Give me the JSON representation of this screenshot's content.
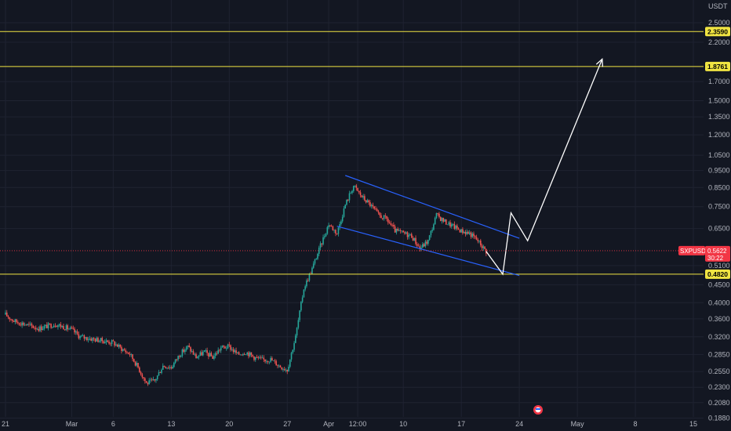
{
  "chart_data": {
    "type": "candlestick",
    "currency": "USDT",
    "y_scale": "log",
    "ylim": [
      0.18,
      2.9
    ],
    "xlim": [
      "2023-02-21",
      "2023-05-15"
    ],
    "grid": true,
    "y_ticks": [
      {
        "value": 2.5,
        "label": "2.5000"
      },
      {
        "value": 2.2,
        "label": "2.2000"
      },
      {
        "value": 1.7,
        "label": "1.7000"
      },
      {
        "value": 1.5,
        "label": "1.5000"
      },
      {
        "value": 1.35,
        "label": "1.3500"
      },
      {
        "value": 1.2,
        "label": "1.2000"
      },
      {
        "value": 1.05,
        "label": "1.0500"
      },
      {
        "value": 0.95,
        "label": "0.9500"
      },
      {
        "value": 0.85,
        "label": "0.8500"
      },
      {
        "value": 0.75,
        "label": "0.7500"
      },
      {
        "value": 0.65,
        "label": "0.6500"
      },
      {
        "value": 0.51,
        "label": "0.5100"
      },
      {
        "value": 0.45,
        "label": "0.4500"
      },
      {
        "value": 0.4,
        "label": "0.4000"
      },
      {
        "value": 0.36,
        "label": "0.3600"
      },
      {
        "value": 0.32,
        "label": "0.3200"
      },
      {
        "value": 0.285,
        "label": "0.2850"
      },
      {
        "value": 0.255,
        "label": "0.2550"
      },
      {
        "value": 0.23,
        "label": "0.2300"
      },
      {
        "value": 0.208,
        "label": "0.2080"
      },
      {
        "value": 0.188,
        "label": "0.1880"
      }
    ],
    "x_ticks": [
      {
        "date": "2023-02-21",
        "label": "21"
      },
      {
        "date": "2023-03-01",
        "label": "Mar"
      },
      {
        "date": "2023-03-06",
        "label": "6"
      },
      {
        "date": "2023-03-13",
        "label": "13"
      },
      {
        "date": "2023-03-20",
        "label": "20"
      },
      {
        "date": "2023-03-27",
        "label": "27"
      },
      {
        "date": "2023-04-01",
        "label": "Apr"
      },
      {
        "date": "2023-04-04 12:00",
        "label": "12:00"
      },
      {
        "date": "2023-04-10",
        "label": "10"
      },
      {
        "date": "2023-04-17",
        "label": "17"
      },
      {
        "date": "2023-04-24",
        "label": "24"
      },
      {
        "date": "2023-05-01",
        "label": "May"
      },
      {
        "date": "2023-05-08",
        "label": "8"
      },
      {
        "date": "2023-05-15",
        "label": "15"
      }
    ],
    "horizontal_levels": [
      {
        "value": 2.359,
        "label": "2.3590",
        "color": "#f0e442"
      },
      {
        "value": 1.8761,
        "label": "1.8761",
        "color": "#f0e442"
      },
      {
        "value": 0.482,
        "label": "0.4820",
        "color": "#f0e442"
      }
    ],
    "current_price": {
      "symbol": "SXPUSDT",
      "value": 0.5622,
      "label": "0.5622",
      "countdown": "30:22",
      "color": "#f23645"
    },
    "channel": {
      "color": "#2962ff",
      "upper": [
        [
          "2023-04-03",
          0.92
        ],
        [
          "2023-04-24",
          0.61
        ]
      ],
      "lower": [
        [
          "2023-04-02",
          0.66
        ],
        [
          "2023-04-24",
          0.478
        ]
      ]
    },
    "projection": {
      "color": "#ffffff",
      "points": [
        [
          "2023-04-20",
          0.56
        ],
        [
          "2023-04-22",
          0.482
        ],
        [
          "2023-04-23",
          0.72
        ],
        [
          "2023-04-25",
          0.6
        ],
        [
          "2023-05-04",
          1.97
        ]
      ]
    },
    "price_path": [
      [
        "2023-02-21",
        0.37
      ],
      [
        "2023-02-22",
        0.355
      ],
      [
        "2023-02-24",
        0.344
      ],
      [
        "2023-02-25",
        0.338
      ],
      [
        "2023-02-27",
        0.348
      ],
      [
        "2023-03-01",
        0.335
      ],
      [
        "2023-03-02",
        0.32
      ],
      [
        "2023-03-04",
        0.314
      ],
      [
        "2023-03-06",
        0.308
      ],
      [
        "2023-03-07",
        0.296
      ],
      [
        "2023-03-08",
        0.286
      ],
      [
        "2023-03-09",
        0.262
      ],
      [
        "2023-03-10",
        0.236
      ],
      [
        "2023-03-11",
        0.24
      ],
      [
        "2023-03-12",
        0.265
      ],
      [
        "2023-03-13",
        0.262
      ],
      [
        "2023-03-14",
        0.285
      ],
      [
        "2023-03-15",
        0.3
      ],
      [
        "2023-03-16",
        0.28
      ],
      [
        "2023-03-17",
        0.29
      ],
      [
        "2023-03-18",
        0.28
      ],
      [
        "2023-03-19",
        0.298
      ],
      [
        "2023-03-20",
        0.3
      ],
      [
        "2023-03-21",
        0.285
      ],
      [
        "2023-03-22",
        0.29
      ],
      [
        "2023-03-23",
        0.28
      ],
      [
        "2023-03-24",
        0.275
      ],
      [
        "2023-03-25",
        0.276
      ],
      [
        "2023-03-26",
        0.265
      ],
      [
        "2023-03-27",
        0.258
      ],
      [
        "2023-03-28",
        0.32
      ],
      [
        "2023-03-29",
        0.44
      ],
      [
        "2023-03-30",
        0.5
      ],
      [
        "2023-03-31",
        0.58
      ],
      [
        "2023-04-01",
        0.67
      ],
      [
        "2023-04-02",
        0.63
      ],
      [
        "2023-04-03",
        0.76
      ],
      [
        "2023-04-04",
        0.86
      ],
      [
        "2023-04-05",
        0.8
      ],
      [
        "2023-04-06",
        0.76
      ],
      [
        "2023-04-07",
        0.71
      ],
      [
        "2023-04-08",
        0.69
      ],
      [
        "2023-04-09",
        0.64
      ],
      [
        "2023-04-10",
        0.63
      ],
      [
        "2023-04-11",
        0.62
      ],
      [
        "2023-04-12",
        0.57
      ],
      [
        "2023-04-13",
        0.6
      ],
      [
        "2023-04-14",
        0.71
      ],
      [
        "2023-04-15",
        0.68
      ],
      [
        "2023-04-16",
        0.66
      ],
      [
        "2023-04-17",
        0.64
      ],
      [
        "2023-04-18",
        0.63
      ],
      [
        "2023-04-19",
        0.6
      ],
      [
        "2023-04-20",
        0.56
      ]
    ]
  }
}
